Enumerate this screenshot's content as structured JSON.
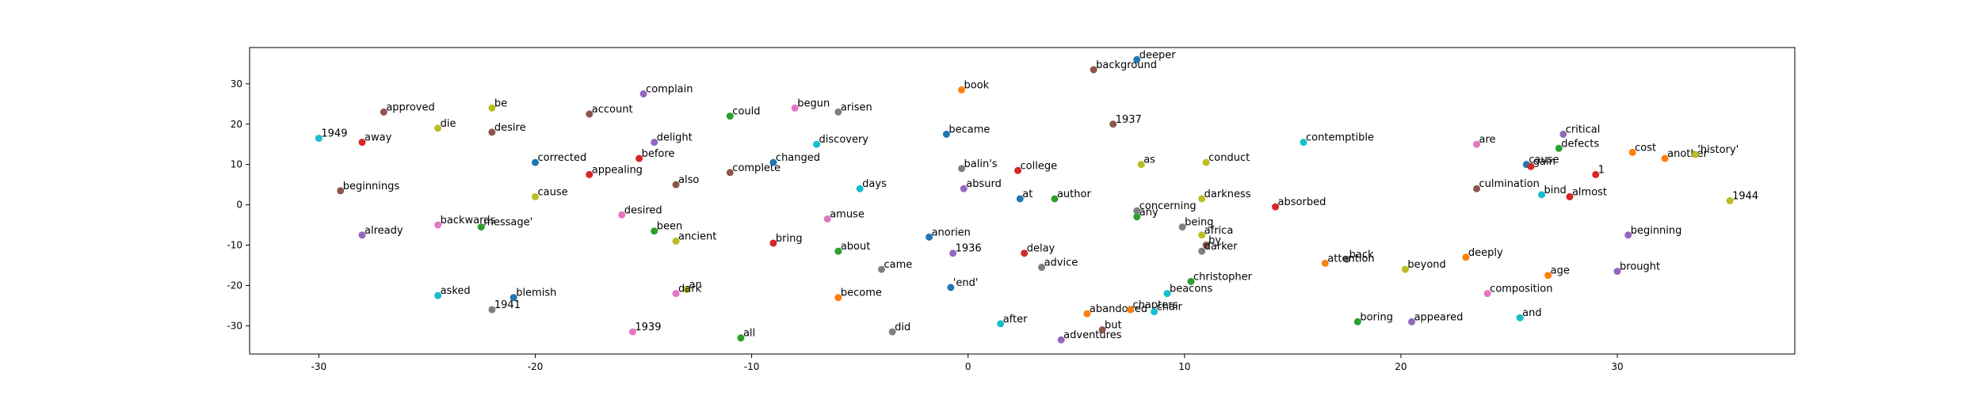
{
  "chart_data": {
    "type": "scatter",
    "title": "",
    "xlabel": "",
    "ylabel": "",
    "xlim": [
      -33.2,
      38.2
    ],
    "ylim": [
      -37,
      39
    ],
    "xticks": [
      -30,
      -20,
      -10,
      0,
      10,
      20,
      30
    ],
    "yticks": [
      -30,
      -20,
      -10,
      0,
      10,
      20,
      30
    ],
    "grid": false,
    "legend": "none",
    "colors": [
      "#1f77b4",
      "#ff7f0e",
      "#2ca02c",
      "#d62728",
      "#9467bd",
      "#8c564b",
      "#e377c2",
      "#7f7f7f",
      "#bcbd22",
      "#17becf"
    ],
    "points": [
      {
        "label": "1949",
        "x": -30.0,
        "y": 16.5,
        "c": 9
      },
      {
        "label": "away",
        "x": -28.0,
        "y": 15.5,
        "c": 3
      },
      {
        "label": "beginnings",
        "x": -29.0,
        "y": 3.5,
        "c": 5
      },
      {
        "label": "already",
        "x": -28.0,
        "y": -7.5,
        "c": 4
      },
      {
        "label": "approved",
        "x": -27.0,
        "y": 23.0,
        "c": 5
      },
      {
        "label": "be",
        "x": -22.0,
        "y": 24.0,
        "c": 8
      },
      {
        "label": "die",
        "x": -24.5,
        "y": 19.0,
        "c": 8
      },
      {
        "label": "desire",
        "x": -22.0,
        "y": 18.0,
        "c": 5
      },
      {
        "label": "backwards",
        "x": -24.5,
        "y": -5.0,
        "c": 6
      },
      {
        "label": "message'",
        "x": -22.5,
        "y": -5.5,
        "c": 2
      },
      {
        "label": "asked",
        "x": -24.5,
        "y": -22.5,
        "c": 9
      },
      {
        "label": "1941",
        "x": -22.0,
        "y": -26.0,
        "c": 7
      },
      {
        "label": "blemish",
        "x": -21.0,
        "y": -23.0,
        "c": 0
      },
      {
        "label": "corrected",
        "x": -20.0,
        "y": 10.5,
        "c": 0
      },
      {
        "label": "cause",
        "x": -20.0,
        "y": 2.0,
        "c": 8
      },
      {
        "label": "account",
        "x": -17.5,
        "y": 22.5,
        "c": 5
      },
      {
        "label": "appealing",
        "x": -17.5,
        "y": 7.5,
        "c": 3
      },
      {
        "label": "complain",
        "x": -15.0,
        "y": 27.5,
        "c": 4
      },
      {
        "label": "delight",
        "x": -14.5,
        "y": 15.5,
        "c": 4
      },
      {
        "label": "before",
        "x": -15.2,
        "y": 11.5,
        "c": 3
      },
      {
        "label": "also",
        "x": -13.5,
        "y": 5.0,
        "c": 5
      },
      {
        "label": "desired",
        "x": -16.0,
        "y": -2.5,
        "c": 6
      },
      {
        "label": "been",
        "x": -14.5,
        "y": -6.5,
        "c": 2
      },
      {
        "label": "ancient",
        "x": -13.5,
        "y": -9.0,
        "c": 8
      },
      {
        "label": "an",
        "x": -13.0,
        "y": -21.0,
        "c": 8
      },
      {
        "label": "dark",
        "x": -13.5,
        "y": -22.0,
        "c": 6
      },
      {
        "label": "1939",
        "x": -15.5,
        "y": -31.5,
        "c": 6
      },
      {
        "label": "could",
        "x": -11.0,
        "y": 22.0,
        "c": 2
      },
      {
        "label": "complete",
        "x": -11.0,
        "y": 8.0,
        "c": 5
      },
      {
        "label": "all",
        "x": -10.5,
        "y": -33.0,
        "c": 2
      },
      {
        "label": "begun",
        "x": -8.0,
        "y": 24.0,
        "c": 6
      },
      {
        "label": "arisen",
        "x": -6.0,
        "y": 23.0,
        "c": 7
      },
      {
        "label": "changed",
        "x": -9.0,
        "y": 10.5,
        "c": 0
      },
      {
        "label": "discovery",
        "x": -7.0,
        "y": 15.0,
        "c": 9
      },
      {
        "label": "bring",
        "x": -9.0,
        "y": -9.5,
        "c": 3
      },
      {
        "label": "amuse",
        "x": -6.5,
        "y": -3.5,
        "c": 6
      },
      {
        "label": "days",
        "x": -5.0,
        "y": 4.0,
        "c": 9
      },
      {
        "label": "about",
        "x": -6.0,
        "y": -11.5,
        "c": 2
      },
      {
        "label": "came",
        "x": -4.0,
        "y": -16.0,
        "c": 7
      },
      {
        "label": "become",
        "x": -6.0,
        "y": -23.0,
        "c": 1
      },
      {
        "label": "did",
        "x": -3.5,
        "y": -31.5,
        "c": 7
      },
      {
        "label": "book",
        "x": -0.3,
        "y": 28.5,
        "c": 1
      },
      {
        "label": "became",
        "x": -1.0,
        "y": 17.5,
        "c": 0
      },
      {
        "label": "balin's",
        "x": -0.3,
        "y": 9.0,
        "c": 7
      },
      {
        "label": "absurd",
        "x": -0.2,
        "y": 4.0,
        "c": 4
      },
      {
        "label": "anorien",
        "x": -1.8,
        "y": -8.0,
        "c": 0
      },
      {
        "label": "1936",
        "x": -0.7,
        "y": -12.0,
        "c": 4
      },
      {
        "label": "'end'",
        "x": -0.8,
        "y": -20.5,
        "c": 0
      },
      {
        "label": "after",
        "x": 1.5,
        "y": -29.5,
        "c": 9
      },
      {
        "label": "college",
        "x": 2.3,
        "y": 8.5,
        "c": 3
      },
      {
        "label": "at",
        "x": 2.4,
        "y": 1.5,
        "c": 0
      },
      {
        "label": "author",
        "x": 4.0,
        "y": 1.5,
        "c": 2
      },
      {
        "label": "delay",
        "x": 2.6,
        "y": -12.0,
        "c": 3
      },
      {
        "label": "advice",
        "x": 3.4,
        "y": -15.5,
        "c": 7
      },
      {
        "label": "deeper",
        "x": 7.8,
        "y": 36.0,
        "c": 0
      },
      {
        "label": "background",
        "x": 5.8,
        "y": 33.5,
        "c": 5
      },
      {
        "label": "1937",
        "x": 6.7,
        "y": 20.0,
        "c": 5
      },
      {
        "label": "as",
        "x": 8.0,
        "y": 10.0,
        "c": 8
      },
      {
        "label": "concerning",
        "x": 7.8,
        "y": -1.5,
        "c": 7
      },
      {
        "label": "any",
        "x": 7.8,
        "y": -3.0,
        "c": 2
      },
      {
        "label": "abandoned",
        "x": 5.5,
        "y": -27.0,
        "c": 1
      },
      {
        "label": "but",
        "x": 6.2,
        "y": -31.0,
        "c": 5
      },
      {
        "label": "adventures",
        "x": 4.3,
        "y": -33.5,
        "c": 4
      },
      {
        "label": "chapters",
        "x": 7.5,
        "y": -26.0,
        "c": 1
      },
      {
        "label": "chair",
        "x": 8.6,
        "y": -26.5,
        "c": 9
      },
      {
        "label": "beacons",
        "x": 9.2,
        "y": -22.0,
        "c": 9
      },
      {
        "label": "christopher",
        "x": 10.3,
        "y": -19.0,
        "c": 2
      },
      {
        "label": "conduct",
        "x": 11.0,
        "y": 10.5,
        "c": 8
      },
      {
        "label": "darkness",
        "x": 10.8,
        "y": 1.5,
        "c": 8
      },
      {
        "label": "being",
        "x": 9.9,
        "y": -5.5,
        "c": 7
      },
      {
        "label": "africa",
        "x": 10.8,
        "y": -7.5,
        "c": 8
      },
      {
        "label": "by",
        "x": 11.0,
        "y": -10.0,
        "c": 5
      },
      {
        "label": "darker",
        "x": 10.8,
        "y": -11.5,
        "c": 7
      },
      {
        "label": "absorbed",
        "x": 14.2,
        "y": -0.5,
        "c": 3
      },
      {
        "label": "contemptible",
        "x": 15.5,
        "y": 15.5,
        "c": 9
      },
      {
        "label": "back",
        "x": 17.5,
        "y": -13.5,
        "c": 7
      },
      {
        "label": "attention",
        "x": 16.5,
        "y": -14.5,
        "c": 1
      },
      {
        "label": "boring",
        "x": 18.0,
        "y": -29.0,
        "c": 2
      },
      {
        "label": "beyond",
        "x": 20.2,
        "y": -16.0,
        "c": 8
      },
      {
        "label": "appeared",
        "x": 20.5,
        "y": -29.0,
        "c": 4
      },
      {
        "label": "deeply",
        "x": 23.0,
        "y": -13.0,
        "c": 1
      },
      {
        "label": "are",
        "x": 23.5,
        "y": 15.0,
        "c": 6
      },
      {
        "label": "culmination",
        "x": 23.5,
        "y": 4.0,
        "c": 5
      },
      {
        "label": "composition",
        "x": 24.0,
        "y": -22.0,
        "c": 6
      },
      {
        "label": "cause",
        "x": 25.8,
        "y": 10.0,
        "c": 0
      },
      {
        "label": "gain",
        "x": 26.0,
        "y": 9.5,
        "c": 3
      },
      {
        "label": "bind",
        "x": 26.5,
        "y": 2.5,
        "c": 9
      },
      {
        "label": "and",
        "x": 25.5,
        "y": -28.0,
        "c": 9
      },
      {
        "label": "age",
        "x": 26.8,
        "y": -17.5,
        "c": 1
      },
      {
        "label": "critical",
        "x": 27.5,
        "y": 17.5,
        "c": 4
      },
      {
        "label": "defects",
        "x": 27.3,
        "y": 14.0,
        "c": 2
      },
      {
        "label": "almost",
        "x": 27.8,
        "y": 2.0,
        "c": 3
      },
      {
        "label": "1",
        "x": 29.0,
        "y": 7.5,
        "c": 3
      },
      {
        "label": "cost",
        "x": 30.7,
        "y": 13.0,
        "c": 1
      },
      {
        "label": "another",
        "x": 32.2,
        "y": 11.5,
        "c": 1
      },
      {
        "label": "'history'",
        "x": 33.6,
        "y": 12.5,
        "c": 8
      },
      {
        "label": "beginning",
        "x": 30.5,
        "y": -7.5,
        "c": 4
      },
      {
        "label": "brought",
        "x": 30.0,
        "y": -16.5,
        "c": 4
      },
      {
        "label": "1944",
        "x": 35.2,
        "y": 1.0,
        "c": 8
      }
    ]
  }
}
